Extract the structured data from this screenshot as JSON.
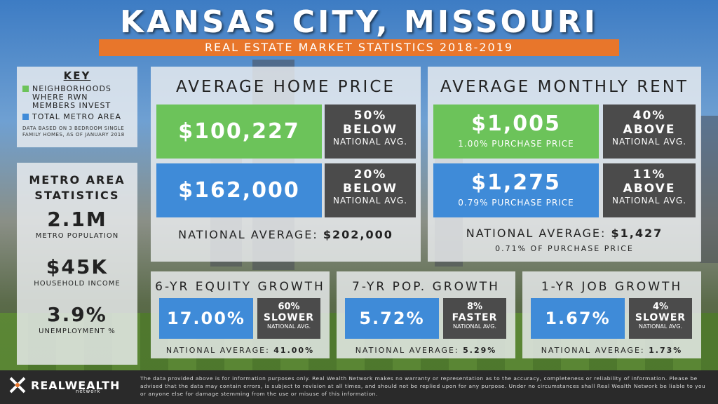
{
  "title": "KANSAS CITY, MISSOURI",
  "subtitle": "REAL ESTATE MARKET STATISTICS 2018-2019",
  "colors": {
    "green": "#6cc35a",
    "blue": "#3f8bd8",
    "orange": "#e8762b",
    "dark": "#4b4b4b"
  },
  "key": {
    "heading": "KEY",
    "green_label": "NEIGHBORHOODS WHERE RWN MEMBERS INVEST",
    "blue_label": "TOTAL METRO AREA",
    "note": "DATA BASED ON 3 BEDROOM SINGLE FAMILY HOMES, AS OF JANUARY 2018"
  },
  "metro": {
    "heading": "METRO AREA STATISTICS",
    "population": {
      "value": "2.1M",
      "label": "METRO POPULATION"
    },
    "income": {
      "value": "$45K",
      "label": "HOUSEHOLD INCOME"
    },
    "unemployment": {
      "value": "3.9%",
      "label": "UNEMPLOYMENT %"
    }
  },
  "home_price": {
    "heading": "AVERAGE HOME PRICE",
    "rwn": {
      "value": "$100,227",
      "pct": "50%",
      "dir": "BELOW",
      "nat": "NATIONAL AVG."
    },
    "metro": {
      "value": "$162,000",
      "pct": "20%",
      "dir": "BELOW",
      "nat": "NATIONAL AVG."
    },
    "national_label": "NATIONAL AVERAGE:",
    "national_value": "$202,000"
  },
  "rent": {
    "heading": "AVERAGE MONTHLY RENT",
    "rwn": {
      "value": "$1,005",
      "sub": "1.00% PURCHASE PRICE",
      "pct": "40%",
      "dir": "ABOVE",
      "nat": "NATIONAL AVG."
    },
    "metro": {
      "value": "$1,275",
      "sub": "0.79% PURCHASE PRICE",
      "pct": "11%",
      "dir": "ABOVE",
      "nat": "NATIONAL AVG."
    },
    "national_label": "NATIONAL AVERAGE:",
    "national_value": "$1,427",
    "national_sub": "0.71% OF PURCHASE PRICE"
  },
  "equity": {
    "heading": "6-YR EQUITY GROWTH",
    "value": "17.00%",
    "pct": "60%",
    "dir": "SLOWER",
    "nat": "NATIONAL AVG.",
    "national_label": "NATIONAL AVERAGE:",
    "national_value": "41.00%"
  },
  "pop": {
    "heading": "7-YR POP. GROWTH",
    "value": "5.72%",
    "pct": "8%",
    "dir": "FASTER",
    "nat": "NATIONAL AVG.",
    "national_label": "NATIONAL AVERAGE:",
    "national_value": "5.29%"
  },
  "job": {
    "heading": "1-YR JOB GROWTH",
    "value": "1.67%",
    "pct": "4%",
    "dir": "SLOWER",
    "nat": "NATIONAL AVG.",
    "national_label": "NATIONAL AVERAGE:",
    "national_value": "1.73%"
  },
  "footer": {
    "logo_text": "REALWEALTH",
    "logo_sub": "network",
    "logo_icon": "rwn-logo-icon",
    "disclaimer": "The data provided above is for information purposes only. Real Wealth Network makes no warranty or representation as to the accuracy, completeness or reliability of information. Please be advised that the data may contain errors, is subject to revision at all times, and should not be replied upon for any purpose. Under no circumstances shall Real Wealth Network be liable to you or anyone else for damage stemming from the use or misuse of this information."
  }
}
